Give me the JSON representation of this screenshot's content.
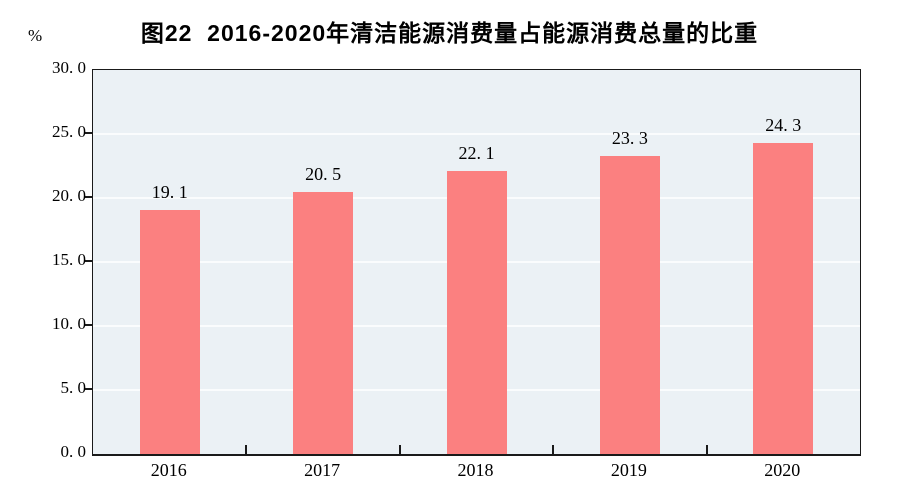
{
  "header": {
    "title": "图22  2016-2020年清洁能源消费量占能源消费总量的比重",
    "unit_label": "%"
  },
  "chart_data": {
    "type": "bar",
    "title": "图22  2016-2020年清洁能源消费量占能源消费总量的比重",
    "categories": [
      "2016",
      "2017",
      "2018",
      "2019",
      "2020"
    ],
    "values": [
      19.1,
      20.5,
      22.1,
      23.3,
      24.3
    ],
    "value_labels": [
      "19. 1",
      "20. 5",
      "22. 1",
      "23. 3",
      "24. 3"
    ],
    "xlabel": "",
    "ylabel": "%",
    "ylim": [
      0,
      30
    ],
    "ytick_interval": 5,
    "ytick_values": [
      0,
      5,
      10,
      15,
      20,
      25,
      30
    ],
    "ytick_labels": [
      "0. 0",
      "5. 0",
      "10. 0",
      "15. 0",
      "20. 0",
      "25. 0",
      "30. 0"
    ],
    "grid": true,
    "legend": "none",
    "colors": {
      "bar": "#FB8080",
      "plot_background": "#EBF1F5",
      "gridline": "#FAFCFD",
      "axis": "#1a1a1a",
      "text": "#000000",
      "page_background": "#FFFFFF"
    }
  }
}
